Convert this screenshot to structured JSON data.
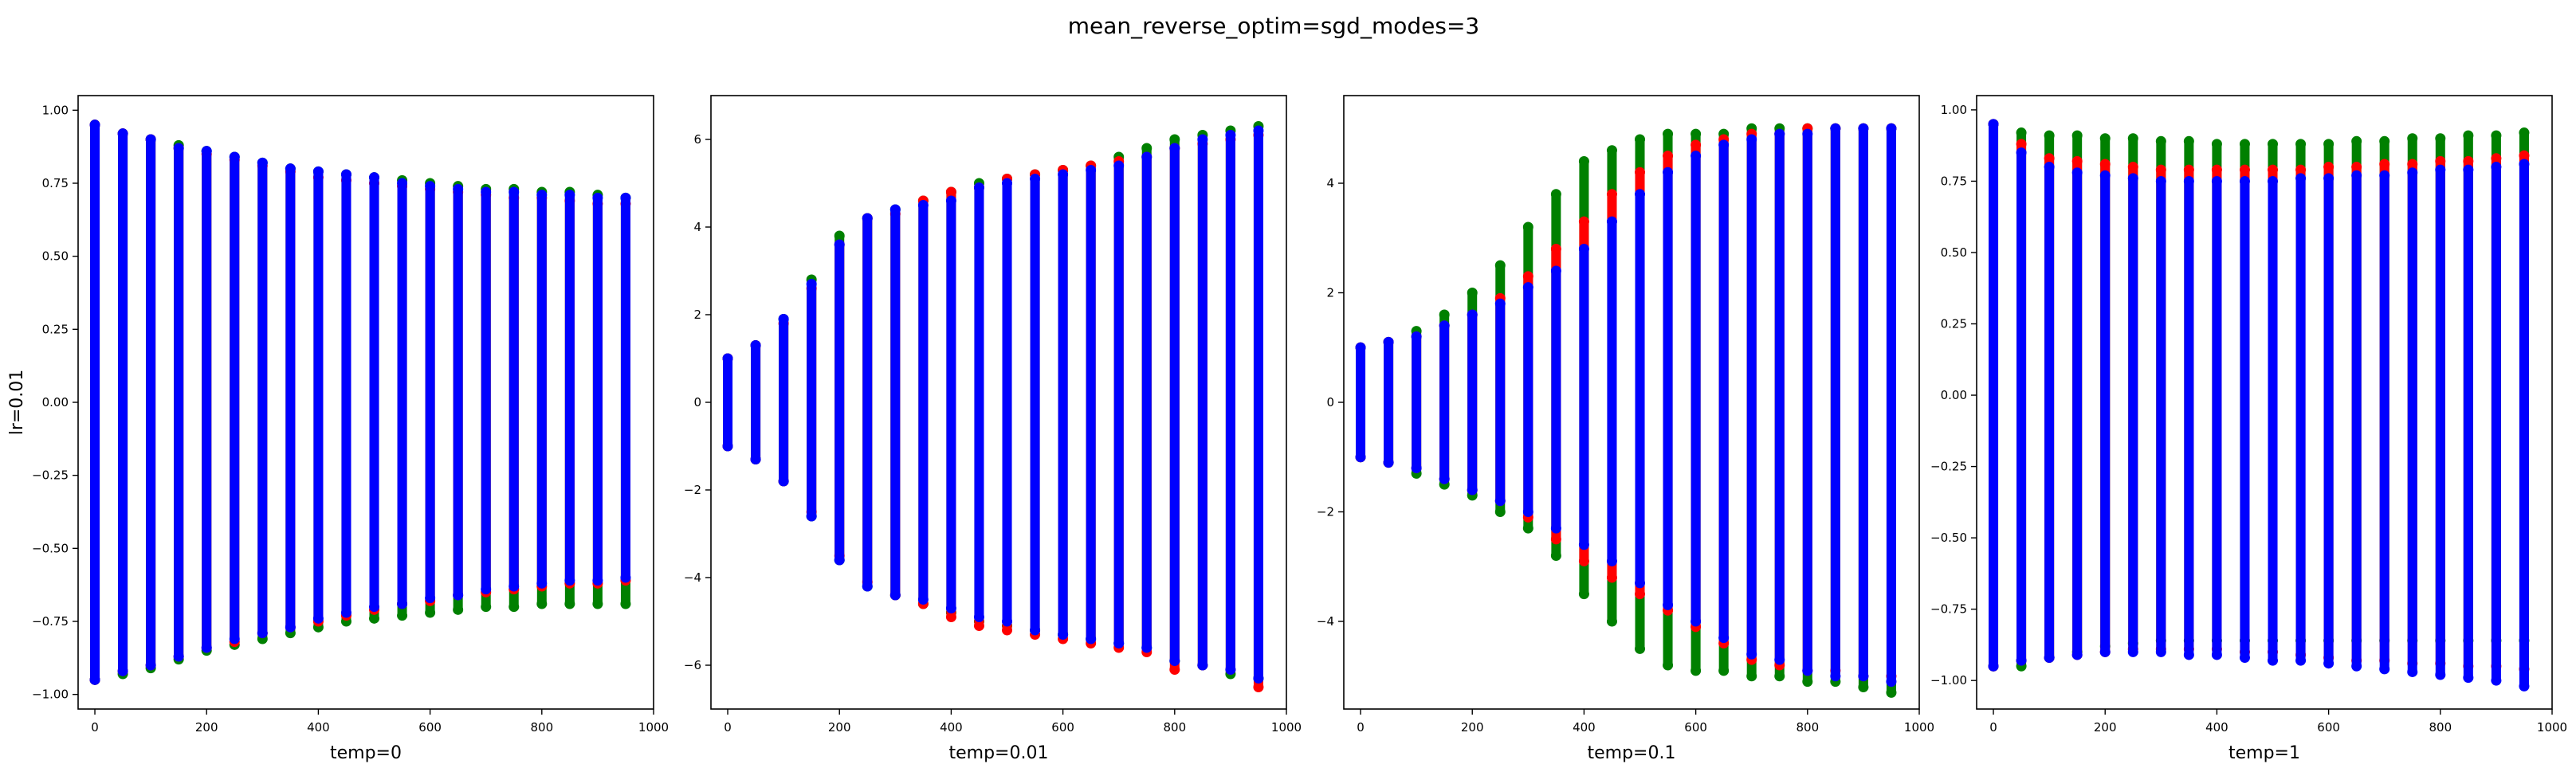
{
  "figure": {
    "suptitle": "mean_reverse_optim=sgd_modes=3"
  },
  "colors": {
    "red": "#ff0000",
    "green": "#008000",
    "blue": "#0000ff"
  },
  "chart_data": [
    {
      "type": "scatter",
      "title": "",
      "xlabel": "temp=0",
      "ylabel": "lr=0.01",
      "xlim": [
        -30,
        1000
      ],
      "ylim": [
        -1.05,
        1.05
      ],
      "x_ticks": [
        0,
        200,
        400,
        600,
        800,
        1000
      ],
      "y_ticks": [
        -1.0,
        -0.75,
        -0.5,
        -0.25,
        0.0,
        0.25,
        0.5,
        0.75,
        1.0
      ],
      "y_tick_labels": [
        "−1.00",
        "−0.75",
        "−0.50",
        "−0.25",
        "0.00",
        "0.25",
        "0.50",
        "0.75",
        "1.00"
      ],
      "x": [
        0,
        50,
        100,
        150,
        200,
        250,
        300,
        350,
        400,
        450,
        500,
        550,
        600,
        650,
        700,
        750,
        800,
        850,
        900,
        950
      ],
      "series": [
        {
          "color": "green",
          "ymin": [
            -0.95,
            -0.93,
            -0.91,
            -0.88,
            -0.85,
            -0.83,
            -0.81,
            -0.79,
            -0.77,
            -0.75,
            -0.74,
            -0.73,
            -0.72,
            -0.71,
            -0.7,
            -0.7,
            -0.69,
            -0.69,
            -0.69,
            -0.69
          ],
          "ymax": [
            0.95,
            0.92,
            0.9,
            0.88,
            0.86,
            0.84,
            0.82,
            0.8,
            0.79,
            0.78,
            0.77,
            0.76,
            0.75,
            0.74,
            0.73,
            0.73,
            0.72,
            0.72,
            0.71,
            0.7
          ]
        },
        {
          "color": "red",
          "ymin": [
            -0.95,
            -0.92,
            -0.9,
            -0.87,
            -0.84,
            -0.82,
            -0.79,
            -0.77,
            -0.75,
            -0.73,
            -0.71,
            -0.69,
            -0.68,
            -0.66,
            -0.65,
            -0.64,
            -0.63,
            -0.62,
            -0.62,
            -0.61
          ],
          "ymax": [
            0.95,
            0.92,
            0.9,
            0.87,
            0.85,
            0.83,
            0.81,
            0.79,
            0.77,
            0.76,
            0.75,
            0.74,
            0.73,
            0.72,
            0.71,
            0.7,
            0.7,
            0.69,
            0.68,
            0.68
          ]
        },
        {
          "color": "blue",
          "ymin": [
            -0.95,
            -0.92,
            -0.9,
            -0.87,
            -0.84,
            -0.81,
            -0.79,
            -0.77,
            -0.74,
            -0.72,
            -0.7,
            -0.69,
            -0.67,
            -0.66,
            -0.64,
            -0.63,
            -0.62,
            -0.61,
            -0.61,
            -0.6
          ],
          "ymax": [
            0.95,
            0.92,
            0.9,
            0.87,
            0.86,
            0.84,
            0.82,
            0.8,
            0.79,
            0.78,
            0.77,
            0.75,
            0.74,
            0.73,
            0.72,
            0.72,
            0.71,
            0.71,
            0.7,
            0.7
          ]
        }
      ]
    },
    {
      "type": "scatter",
      "title": "",
      "xlabel": "temp=0.01",
      "ylabel": "",
      "xlim": [
        -30,
        1000
      ],
      "ylim": [
        -7.0,
        7.0
      ],
      "x_ticks": [
        0,
        200,
        400,
        600,
        800,
        1000
      ],
      "y_ticks": [
        -6,
        -4,
        -2,
        0,
        2,
        4,
        6
      ],
      "y_tick_labels": [
        "−6",
        "−4",
        "−2",
        "0",
        "2",
        "4",
        "6"
      ],
      "x": [
        0,
        50,
        100,
        150,
        200,
        250,
        300,
        350,
        400,
        450,
        500,
        550,
        600,
        650,
        700,
        750,
        800,
        850,
        900,
        950
      ],
      "series": [
        {
          "color": "green",
          "ymin": [
            -1.0,
            -1.3,
            -1.8,
            -2.6,
            -3.6,
            -4.2,
            -4.4,
            -4.6,
            -4.8,
            -5.0,
            -5.1,
            -5.2,
            -5.3,
            -5.4,
            -5.5,
            -5.6,
            -5.9,
            -6.0,
            -6.2,
            -6.3
          ],
          "ymax": [
            1.0,
            1.3,
            1.9,
            2.8,
            3.8,
            4.2,
            4.4,
            4.6,
            4.8,
            5.0,
            5.1,
            5.2,
            5.3,
            5.4,
            5.6,
            5.8,
            6.0,
            6.1,
            6.2,
            6.3
          ]
        },
        {
          "color": "red",
          "ymin": [
            -1.0,
            -1.3,
            -1.8,
            -2.5,
            -3.5,
            -4.1,
            -4.4,
            -4.6,
            -4.9,
            -5.1,
            -5.2,
            -5.3,
            -5.4,
            -5.5,
            -5.6,
            -5.7,
            -6.1,
            -6.0,
            -6.1,
            -6.5
          ],
          "ymax": [
            1.0,
            1.3,
            1.8,
            2.6,
            3.6,
            4.2,
            4.3,
            4.6,
            4.8,
            4.9,
            5.1,
            5.2,
            5.3,
            5.4,
            5.5,
            5.6,
            5.8,
            5.9,
            6.0,
            6.1
          ]
        },
        {
          "color": "blue",
          "ymin": [
            -1.0,
            -1.3,
            -1.8,
            -2.6,
            -3.6,
            -4.2,
            -4.4,
            -4.5,
            -4.7,
            -4.9,
            -5.0,
            -5.2,
            -5.3,
            -5.4,
            -5.5,
            -5.6,
            -5.9,
            -6.0,
            -6.1,
            -6.3
          ],
          "ymax": [
            1.0,
            1.3,
            1.9,
            2.7,
            3.6,
            4.2,
            4.4,
            4.5,
            4.6,
            4.9,
            5.0,
            5.1,
            5.2,
            5.3,
            5.4,
            5.6,
            5.8,
            6.0,
            6.1,
            6.2
          ]
        }
      ]
    },
    {
      "type": "scatter",
      "title": "",
      "xlabel": "temp=0.1",
      "ylabel": "",
      "xlim": [
        -30,
        1000
      ],
      "ylim": [
        -5.6,
        5.6
      ],
      "x_ticks": [
        0,
        200,
        400,
        600,
        800,
        1000
      ],
      "y_ticks": [
        -4,
        -2,
        0,
        2,
        4
      ],
      "y_tick_labels": [
        "−4",
        "−2",
        "0",
        "2",
        "4"
      ],
      "x": [
        0,
        50,
        100,
        150,
        200,
        250,
        300,
        350,
        400,
        450,
        500,
        550,
        600,
        650,
        700,
        750,
        800,
        850,
        900,
        950
      ],
      "series": [
        {
          "color": "green",
          "ymin": [
            -1.0,
            -1.1,
            -1.3,
            -1.5,
            -1.7,
            -2.0,
            -2.3,
            -2.8,
            -3.5,
            -4.0,
            -4.5,
            -4.8,
            -4.9,
            -4.9,
            -5.0,
            -5.0,
            -5.1,
            -5.1,
            -5.2,
            -5.3
          ],
          "ymax": [
            1.0,
            1.1,
            1.3,
            1.6,
            2.0,
            2.5,
            3.2,
            3.8,
            4.4,
            4.6,
            4.8,
            4.9,
            4.9,
            4.9,
            5.0,
            5.0,
            5.0,
            5.0,
            5.0,
            5.0
          ]
        },
        {
          "color": "red",
          "ymin": [
            -1.0,
            -1.1,
            -1.2,
            -1.4,
            -1.6,
            -1.8,
            -2.1,
            -2.5,
            -2.9,
            -3.2,
            -3.5,
            -3.8,
            -4.1,
            -4.4,
            -4.7,
            -4.8,
            -4.9,
            -4.9,
            -5.0,
            -5.0
          ],
          "ymax": [
            1.0,
            1.1,
            1.2,
            1.4,
            1.6,
            1.9,
            2.3,
            2.8,
            3.3,
            3.8,
            4.2,
            4.5,
            4.7,
            4.8,
            4.9,
            4.9,
            5.0,
            5.0,
            5.0,
            5.0
          ]
        },
        {
          "color": "blue",
          "ymin": [
            -1.0,
            -1.1,
            -1.2,
            -1.4,
            -1.6,
            -1.8,
            -2.0,
            -2.3,
            -2.6,
            -2.9,
            -3.3,
            -3.7,
            -4.0,
            -4.3,
            -4.6,
            -4.7,
            -4.9,
            -5.0,
            -5.0,
            -5.1
          ],
          "ymax": [
            1.0,
            1.1,
            1.2,
            1.4,
            1.6,
            1.8,
            2.1,
            2.4,
            2.8,
            3.3,
            3.8,
            4.2,
            4.5,
            4.7,
            4.8,
            4.9,
            4.9,
            5.0,
            5.0,
            5.0
          ]
        }
      ]
    },
    {
      "type": "scatter",
      "title": "",
      "xlabel": "temp=1",
      "ylabel": "",
      "xlim": [
        -30,
        1000
      ],
      "ylim": [
        -1.1,
        1.05
      ],
      "x_ticks": [
        0,
        200,
        400,
        600,
        800,
        1000
      ],
      "y_ticks": [
        -1.0,
        -0.75,
        -0.5,
        -0.25,
        0.0,
        0.25,
        0.5,
        0.75,
        1.0
      ],
      "y_tick_labels": [
        "−1.00",
        "−0.75",
        "−0.50",
        "−0.25",
        "0.00",
        "0.25",
        "0.50",
        "0.75",
        "1.00"
      ],
      "x": [
        0,
        50,
        100,
        150,
        200,
        250,
        300,
        350,
        400,
        450,
        500,
        550,
        600,
        650,
        700,
        750,
        800,
        850,
        900,
        950
      ],
      "series": [
        {
          "color": "green",
          "ymin": [
            -0.95,
            -0.95,
            -0.92,
            -0.9,
            -0.88,
            -0.87,
            -0.86,
            -0.86,
            -0.86,
            -0.86,
            -0.86,
            -0.86,
            -0.86,
            -0.86,
            -0.86,
            -0.86,
            -0.86,
            -0.86,
            -0.86,
            -0.86
          ],
          "ymax": [
            0.95,
            0.92,
            0.91,
            0.91,
            0.9,
            0.9,
            0.89,
            0.89,
            0.88,
            0.88,
            0.88,
            0.88,
            0.88,
            0.89,
            0.89,
            0.9,
            0.9,
            0.91,
            0.91,
            0.92
          ]
        },
        {
          "color": "red",
          "ymin": [
            -0.95,
            -0.93,
            -0.92,
            -0.91,
            -0.9,
            -0.89,
            -0.89,
            -0.89,
            -0.89,
            -0.9,
            -0.9,
            -0.91,
            -0.92,
            -0.93,
            -0.93,
            -0.94,
            -0.94,
            -0.95,
            -0.95,
            -0.96
          ],
          "ymax": [
            0.95,
            0.88,
            0.83,
            0.82,
            0.81,
            0.8,
            0.79,
            0.79,
            0.79,
            0.79,
            0.79,
            0.79,
            0.8,
            0.8,
            0.81,
            0.81,
            0.82,
            0.82,
            0.83,
            0.84
          ]
        },
        {
          "color": "blue",
          "ymin": [
            -0.95,
            -0.93,
            -0.92,
            -0.91,
            -0.9,
            -0.9,
            -0.9,
            -0.91,
            -0.91,
            -0.92,
            -0.93,
            -0.93,
            -0.94,
            -0.95,
            -0.96,
            -0.97,
            -0.98,
            -0.99,
            -1.0,
            -1.02
          ],
          "ymax": [
            0.95,
            0.85,
            0.8,
            0.78,
            0.77,
            0.76,
            0.75,
            0.75,
            0.75,
            0.75,
            0.75,
            0.76,
            0.76,
            0.77,
            0.77,
            0.78,
            0.79,
            0.79,
            0.8,
            0.81
          ]
        }
      ]
    }
  ]
}
